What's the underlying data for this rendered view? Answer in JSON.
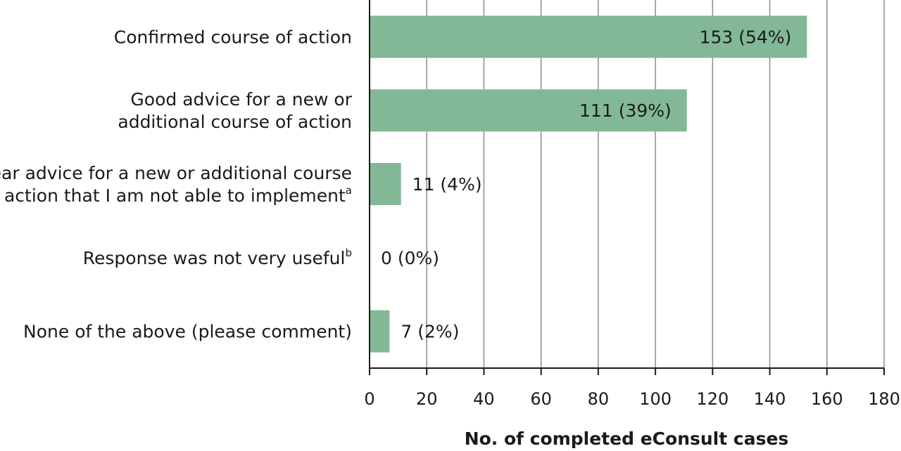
{
  "chart_data": {
    "type": "bar",
    "orientation": "horizontal",
    "categories": [
      {
        "lines": [
          "Confirmed course of action"
        ],
        "sup": ""
      },
      {
        "lines": [
          "Good advice for a new or",
          "additional course of action"
        ],
        "sup": ""
      },
      {
        "lines": [
          "Clear advice for a new or additional course",
          "of action that I am not able to implement"
        ],
        "sup": "a"
      },
      {
        "lines": [
          "Response was not very useful"
        ],
        "sup": "b"
      },
      {
        "lines": [
          "None of the above (please comment)"
        ],
        "sup": ""
      }
    ],
    "values": [
      153,
      111,
      11,
      0,
      7
    ],
    "value_labels": [
      "153 (54%)",
      "111 (39%)",
      "11 (4%)",
      "0 (0%)",
      "7 (2%)"
    ],
    "xlabel": "No. of completed eConsult cases",
    "xlim": [
      0,
      180
    ],
    "xticks": [
      0,
      20,
      40,
      60,
      80,
      100,
      120,
      140,
      160,
      180
    ],
    "grid": "vertical",
    "colors": {
      "bar": "#82b896",
      "grid": "#8c8c8c",
      "axis": "#1a1a1a"
    }
  }
}
